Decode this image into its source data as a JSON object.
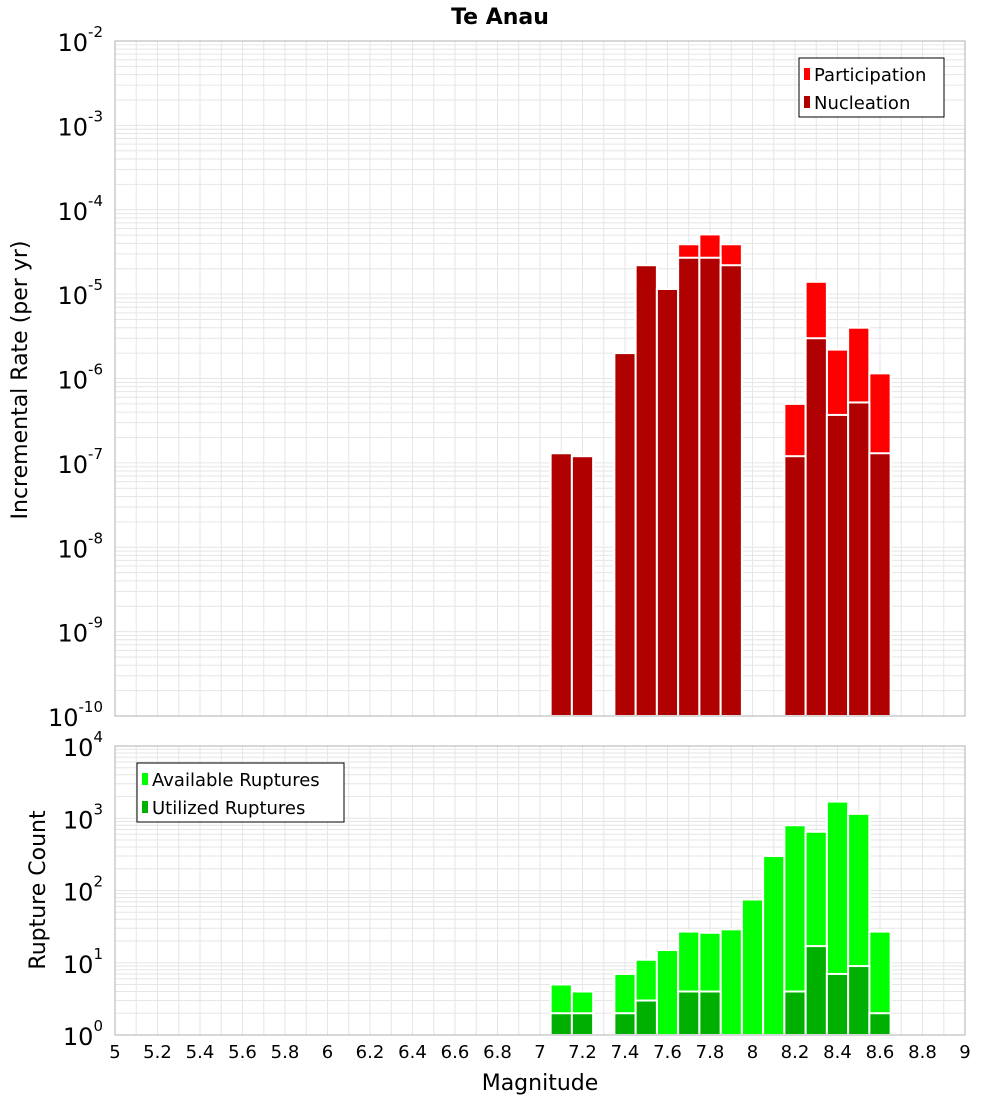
{
  "chart_data": [
    {
      "type": "bar",
      "title": "Te Anau",
      "xlabel": "",
      "ylabel": "Incremental Rate (per yr)",
      "y_scale": "log",
      "xlim": [
        5,
        9
      ],
      "ylim": [
        1e-10,
        0.01
      ],
      "grid": true,
      "legend_position": "top-right",
      "x": [
        7.1,
        7.2,
        7.4,
        7.5,
        7.6,
        7.7,
        7.8,
        7.9,
        8.2,
        8.3,
        8.4,
        8.5,
        8.6
      ],
      "series": [
        {
          "name": "Participation",
          "color": "#ff0000",
          "values": [
            1.3e-07,
            1.2e-07,
            2e-06,
            2.2e-05,
            1.15e-05,
            3.9e-05,
            5.1e-05,
            3.9e-05,
            5e-07,
            1.4e-05,
            2.2e-06,
            4e-06,
            1.15e-06
          ]
        },
        {
          "name": "Nucleation",
          "color": "#b00000",
          "values": [
            1.3e-07,
            1.2e-07,
            2e-06,
            2.2e-05,
            1.15e-05,
            2.7e-05,
            2.7e-05,
            2.2e-05,
            1.2e-07,
            3e-06,
            3.7e-07,
            5.2e-07,
            1.3e-07
          ]
        }
      ]
    },
    {
      "type": "bar",
      "title": "",
      "xlabel": "Magnitude",
      "ylabel": "Rupture Count",
      "y_scale": "log",
      "xlim": [
        5,
        9
      ],
      "ylim": [
        1,
        10000
      ],
      "grid": true,
      "legend_position": "top-left",
      "x": [
        7.1,
        7.2,
        7.3,
        7.4,
        7.5,
        7.6,
        7.7,
        7.8,
        7.9,
        8.0,
        8.1,
        8.2,
        8.3,
        8.4,
        8.5,
        8.6
      ],
      "series": [
        {
          "name": "Available Ruptures",
          "color": "#00ff00",
          "values": [
            5,
            4,
            1,
            7,
            11,
            15,
            27,
            26,
            29,
            75,
            300,
            800,
            650,
            1700,
            1150,
            27
          ]
        },
        {
          "name": "Utilized Ruptures",
          "color": "#00b000",
          "values": [
            2,
            2,
            1,
            2,
            3,
            1,
            4,
            4,
            1,
            1,
            1,
            4,
            17,
            7,
            9,
            2
          ]
        }
      ]
    }
  ],
  "x_ticks": [
    "5",
    "5.2",
    "5.4",
    "5.6",
    "5.8",
    "6",
    "6.2",
    "6.4",
    "6.6",
    "6.8",
    "7",
    "7.2",
    "7.4",
    "7.6",
    "7.8",
    "8",
    "8.2",
    "8.4",
    "8.6",
    "8.8",
    "9"
  ],
  "top_y_ticks": [
    {
      "base": "10",
      "exp": "-10"
    },
    {
      "base": "10",
      "exp": "-9"
    },
    {
      "base": "10",
      "exp": "-8"
    },
    {
      "base": "10",
      "exp": "-7"
    },
    {
      "base": "10",
      "exp": "-6"
    },
    {
      "base": "10",
      "exp": "-5"
    },
    {
      "base": "10",
      "exp": "-4"
    },
    {
      "base": "10",
      "exp": "-3"
    },
    {
      "base": "10",
      "exp": "-2"
    }
  ],
  "bottom_y_ticks": [
    {
      "base": "10",
      "exp": "0"
    },
    {
      "base": "10",
      "exp": "1"
    },
    {
      "base": "10",
      "exp": "2"
    },
    {
      "base": "10",
      "exp": "3"
    },
    {
      "base": "10",
      "exp": "4"
    }
  ],
  "colors": {
    "grid": "#e6e6e6",
    "frame": "#b0b0b0",
    "bar_outline": "#ffffff"
  }
}
